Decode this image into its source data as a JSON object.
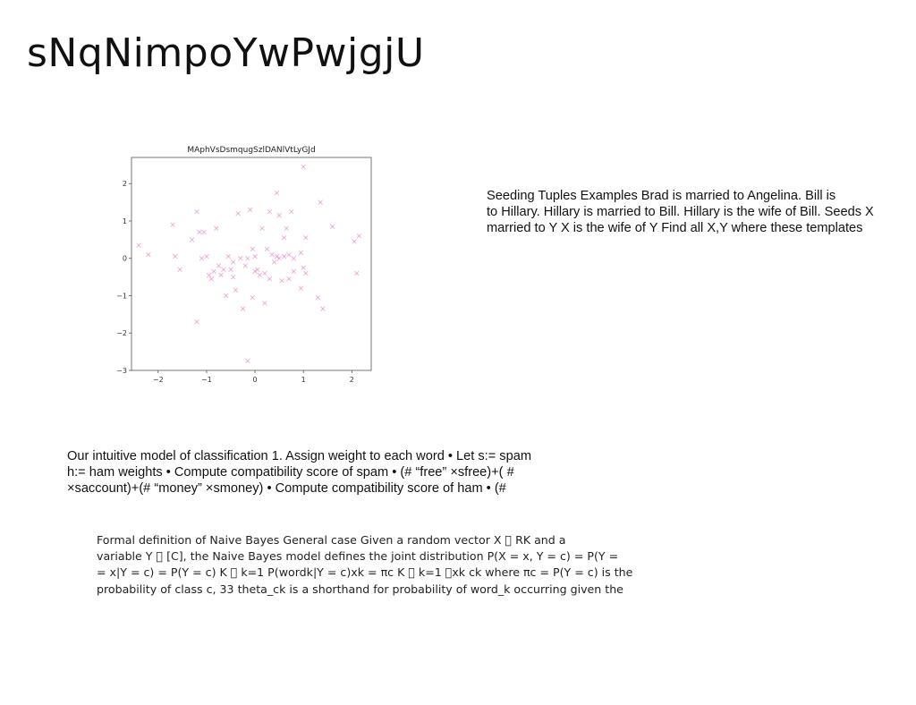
{
  "slide": {
    "title": "sNqNimpoYwPwjgjU"
  },
  "text_blocks": {
    "block_a": {
      "lines": [
        "Seeding Tuples Examples Brad is married to Angelina. Bill is",
        "to Hillary. Hillary is married to Bill. Hillary is the wife of Bill. Seeds X",
        "married to Y X is the wife of Y Find all X,Y where these templates"
      ]
    },
    "block_b": {
      "lines": [
        "Our intuitive model of classification 1. Assign weight to each word • Let s:= spam",
        "h:= ham weights • Compute compatibility score of spam • (# “free” ×sfree)+( #",
        "×saccount)+(# “money” ×smoney) • Compute compatibility score of ham • (#"
      ]
    },
    "block_c": {
      "lines": [
        "Formal definition of Naive Bayes General case Given a random vector X \u0000 RK and a",
        "variable Y \u0000 [C], the Naive Bayes model defines the joint distribution P(X = x, Y = c) = P(Y =",
        "= x|Y = c) = P(Y = c) K \u0000 k=1 P(wordk|Y = c)xk = πc K \u0000 k=1 \u0000xk ck where πc = P(Y = c) is the",
        "probability of class c, 33 theta_ck is a shorthand for probability of word_k occurring given the"
      ]
    }
  },
  "chart_data": {
    "type": "scatter",
    "title": "MAphVsDsmqugSzlDANlVtLyGJd",
    "xlabel": "",
    "ylabel": "",
    "xlim": [
      -2.55,
      2.4
    ],
    "ylim": [
      -3.0,
      2.7
    ],
    "xticks": [
      -2,
      -1,
      0,
      1,
      2
    ],
    "yticks": [
      -3,
      -2,
      -1,
      0,
      1,
      2
    ],
    "grid": false,
    "marker": "x",
    "marker_color": "#e377c2",
    "series": [
      {
        "x": [
          -2.4,
          -2.2,
          -1.7,
          -1.65,
          -1.55,
          -1.3,
          -1.2,
          -1.15,
          -1.1,
          -1.05,
          -1.0,
          -0.95,
          -0.9,
          -0.85,
          -0.8,
          -0.75,
          -0.7,
          -0.65,
          -0.6,
          -0.55,
          -0.5,
          -0.45,
          -0.45,
          -0.4,
          -0.35,
          -0.3,
          -0.25,
          -0.2,
          -0.15,
          -0.1,
          -0.05,
          -0.05,
          0.0,
          0.0,
          0.05,
          0.1,
          0.15,
          0.2,
          0.2,
          0.25,
          0.3,
          0.3,
          0.35,
          0.4,
          0.45,
          0.45,
          0.5,
          0.5,
          0.55,
          0.6,
          0.6,
          0.65,
          0.7,
          0.7,
          0.75,
          0.8,
          0.8,
          0.95,
          1.0,
          1.0,
          1.05,
          1.05,
          1.3,
          1.35,
          1.4,
          1.6,
          2.05,
          2.1,
          2.15,
          -0.15,
          -1.2,
          0.95
        ],
        "y": [
          0.35,
          0.1,
          0.9,
          0.05,
          -0.3,
          0.5,
          1.25,
          0.7,
          0.0,
          0.7,
          0.05,
          -0.45,
          -0.55,
          -0.35,
          0.8,
          -0.2,
          -0.45,
          -0.3,
          -1.0,
          0.05,
          -0.3,
          -0.5,
          -0.1,
          -0.85,
          1.2,
          0.0,
          -1.35,
          -0.2,
          0.0,
          1.3,
          0.25,
          -1.05,
          -0.35,
          0.05,
          -0.3,
          -0.45,
          0.8,
          -0.4,
          -1.2,
          0.25,
          -0.55,
          1.25,
          0.1,
          -0.1,
          0.05,
          1.75,
          1.15,
          0.0,
          -0.6,
          0.55,
          0.05,
          0.8,
          -0.55,
          0.1,
          1.25,
          0.0,
          -0.35,
          -0.8,
          2.45,
          -0.25,
          0.55,
          -0.4,
          -1.05,
          1.5,
          -1.35,
          0.85,
          0.45,
          -0.4,
          0.6,
          -2.75,
          -1.7,
          0.15
        ]
      }
    ]
  }
}
